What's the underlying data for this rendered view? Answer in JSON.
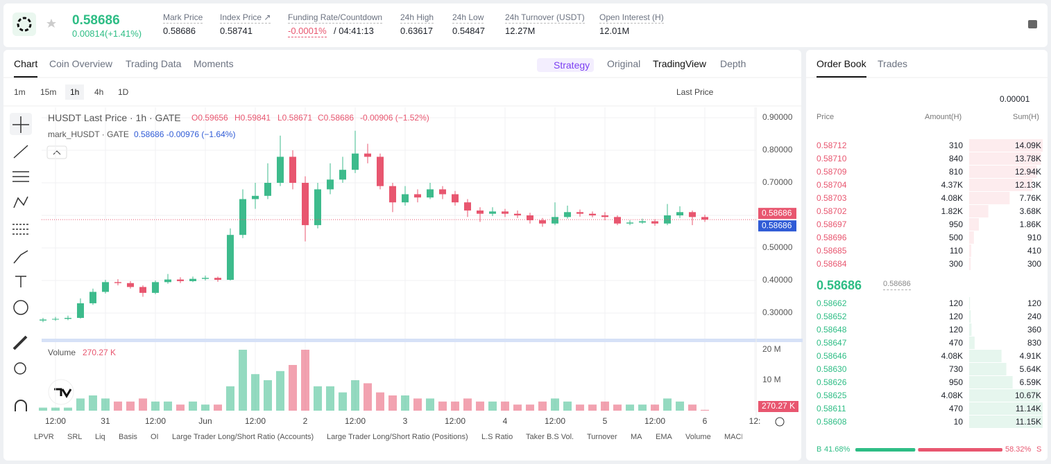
{
  "header": {
    "price": "0.58686",
    "change": "0.00814(+1.41%)",
    "stats": [
      {
        "label": "Mark Price",
        "value": "0.58686"
      },
      {
        "label": "Index Price ↗",
        "value": "0.58741"
      },
      {
        "label": "Funding Rate/Countdown",
        "value": "-0.0001%",
        "value2": "/ 04:41:13"
      },
      {
        "label": "24h High",
        "value": "0.63617"
      },
      {
        "label": "24h Low",
        "value": "0.54847"
      },
      {
        "label": "24h Turnover (USDT)",
        "value": "12.27M"
      },
      {
        "label": "Open Interest (H)",
        "value": "12.01M"
      }
    ]
  },
  "tabs": [
    "Chart",
    "Coin Overview",
    "Trading Data",
    "Moments"
  ],
  "view_tabs": [
    "Strategy",
    "Original",
    "TradingView",
    "Depth"
  ],
  "timeframes": [
    "1m",
    "15m",
    "1h",
    "4h",
    "1D"
  ],
  "price_source": "Last Price",
  "legend": {
    "title": "HUSDT Last Price · 1h · GATE",
    "o": "O0.59656",
    "h": "H0.59841",
    "l": "L0.58671",
    "c": "C0.58686",
    "chg": "-0.00906 (−1.52%)",
    "mark": "mark_HUSDT · GATE",
    "mark_vals": "0.58686 -0.00976 (−1.64%)"
  },
  "indicators": [
    "LPVR",
    "SRL",
    "Liq",
    "Basis",
    "OI",
    "Large Trader Long/Short Ratio (Accounts)",
    "Large Trader Long/Short Ratio (Positions)",
    "L.S Ratio",
    "Taker B.S Vol.",
    "Turnover",
    "MA",
    "EMA",
    "Volume",
    "MACD"
  ],
  "chart_data": {
    "type": "candlestick",
    "up_color": "#3dbb8c",
    "down_color": "#e8566f",
    "candles": [
      [
        0.277,
        0.285,
        0.272,
        0.28
      ],
      [
        0.28,
        0.288,
        0.276,
        0.282
      ],
      [
        0.282,
        0.292,
        0.278,
        0.285
      ],
      [
        0.285,
        0.345,
        0.283,
        0.33
      ],
      [
        0.33,
        0.375,
        0.325,
        0.365
      ],
      [
        0.365,
        0.402,
        0.36,
        0.395
      ],
      [
        0.395,
        0.404,
        0.385,
        0.392
      ],
      [
        0.392,
        0.398,
        0.375,
        0.38
      ],
      [
        0.38,
        0.385,
        0.35,
        0.362
      ],
      [
        0.362,
        0.4,
        0.358,
        0.395
      ],
      [
        0.395,
        0.42,
        0.39,
        0.403
      ],
      [
        0.403,
        0.41,
        0.392,
        0.398
      ],
      [
        0.398,
        0.412,
        0.395,
        0.405
      ],
      [
        0.405,
        0.415,
        0.4,
        0.408
      ],
      [
        0.408,
        0.412,
        0.396,
        0.402
      ],
      [
        0.402,
        0.56,
        0.4,
        0.54
      ],
      [
        0.54,
        0.68,
        0.53,
        0.65
      ],
      [
        0.65,
        0.7,
        0.62,
        0.66
      ],
      [
        0.66,
        0.76,
        0.65,
        0.7
      ],
      [
        0.7,
        0.845,
        0.69,
        0.78
      ],
      [
        0.78,
        0.8,
        0.68,
        0.7
      ],
      [
        0.7,
        0.72,
        0.52,
        0.57
      ],
      [
        0.57,
        0.7,
        0.56,
        0.68
      ],
      [
        0.68,
        0.76,
        0.665,
        0.71
      ],
      [
        0.71,
        0.78,
        0.7,
        0.74
      ],
      [
        0.74,
        0.86,
        0.73,
        0.79
      ],
      [
        0.79,
        0.82,
        0.76,
        0.78
      ],
      [
        0.78,
        0.79,
        0.68,
        0.69
      ],
      [
        0.69,
        0.7,
        0.61,
        0.64
      ],
      [
        0.64,
        0.69,
        0.63,
        0.665
      ],
      [
        0.665,
        0.68,
        0.64,
        0.655
      ],
      [
        0.655,
        0.7,
        0.65,
        0.68
      ],
      [
        0.68,
        0.69,
        0.65,
        0.665
      ],
      [
        0.665,
        0.675,
        0.63,
        0.64
      ],
      [
        0.64,
        0.65,
        0.595,
        0.615
      ],
      [
        0.615,
        0.625,
        0.58,
        0.605
      ],
      [
        0.605,
        0.625,
        0.598,
        0.612
      ],
      [
        0.612,
        0.62,
        0.595,
        0.605
      ],
      [
        0.605,
        0.615,
        0.592,
        0.6
      ],
      [
        0.6,
        0.608,
        0.575,
        0.585
      ],
      [
        0.585,
        0.592,
        0.565,
        0.575
      ],
      [
        0.575,
        0.64,
        0.57,
        0.595
      ],
      [
        0.595,
        0.63,
        0.59,
        0.61
      ],
      [
        0.61,
        0.618,
        0.596,
        0.605
      ],
      [
        0.605,
        0.612,
        0.594,
        0.6
      ],
      [
        0.6,
        0.61,
        0.585,
        0.595
      ],
      [
        0.595,
        0.6,
        0.57,
        0.575
      ],
      [
        0.575,
        0.585,
        0.57,
        0.578
      ],
      [
        0.578,
        0.59,
        0.574,
        0.582
      ],
      [
        0.582,
        0.588,
        0.568,
        0.575
      ],
      [
        0.575,
        0.635,
        0.57,
        0.6
      ],
      [
        0.6,
        0.628,
        0.592,
        0.61
      ],
      [
        0.61,
        0.615,
        0.57,
        0.595
      ],
      [
        0.595,
        0.602,
        0.58,
        0.587
      ]
    ],
    "ylim": [
      0.2213,
      0.9319
    ],
    "yticks": [
      {
        "value": 0.9,
        "label": "0.90000"
      },
      {
        "value": 0.8,
        "label": "0.80000"
      },
      {
        "value": 0.7,
        "label": "0.70000"
      },
      {
        "value": 0.6,
        "label": "0.60000"
      },
      {
        "value": 0.5,
        "label": "0.50000"
      },
      {
        "value": 0.4,
        "label": "0.40000"
      },
      {
        "value": 0.3,
        "label": "0.30000"
      }
    ],
    "xlim": [
      -0.11,
      57.11
    ],
    "xticks": [
      {
        "value": 1,
        "label": "12:00"
      },
      {
        "value": 5,
        "label": "31"
      },
      {
        "value": 9,
        "label": "12:00"
      },
      {
        "value": 13,
        "label": "Jun"
      },
      {
        "value": 17,
        "label": "12:00"
      },
      {
        "value": 21,
        "label": "2"
      },
      {
        "value": 25,
        "label": "12:00"
      },
      {
        "value": 29,
        "label": "3"
      },
      {
        "value": 33,
        "label": "12:00"
      },
      {
        "value": 37,
        "label": "4"
      },
      {
        "value": 41,
        "label": "12:00"
      },
      {
        "value": 45,
        "label": "5"
      },
      {
        "value": 49,
        "label": "12:00"
      },
      {
        "value": 53,
        "label": "6"
      },
      {
        "value": 57,
        "label": "12:"
      }
    ],
    "price_tags": [
      {
        "value": 0.58686,
        "color": "#e8566f"
      },
      {
        "value": 0.58686,
        "color": "#2f5bd6"
      }
    ],
    "volume_title": "Volume",
    "volumes": [
      1,
      1,
      1,
      4,
      5,
      4,
      3,
      3,
      4,
      3,
      3,
      2,
      3,
      2,
      2,
      8,
      20,
      12,
      10,
      13,
      15,
      20,
      8,
      8,
      6,
      10,
      9,
      6,
      5,
      5,
      4,
      4,
      3,
      3,
      4,
      3,
      3,
      3,
      2,
      2,
      3,
      4,
      3,
      2,
      2,
      3,
      2,
      2,
      2,
      2,
      4,
      3,
      2,
      0.27027
    ],
    "volume_value_labels": [
      null,
      null,
      null,
      null,
      null,
      null,
      null,
      null,
      null,
      null,
      null,
      null,
      null,
      null,
      null,
      null,
      null,
      null,
      null,
      null,
      null,
      null,
      null,
      null,
      null,
      null,
      null,
      null,
      null,
      null,
      null,
      null,
      null,
      null,
      null,
      null,
      null,
      null,
      null,
      null,
      null,
      null,
      null,
      null,
      null,
      null,
      null,
      null,
      null,
      null,
      null,
      null,
      null,
      "270.27 K"
    ],
    "volume_ylim": [
      0,
      21.14
    ],
    "volume_yticks": [
      {
        "value": 20,
        "label": "20 M"
      },
      {
        "value": 10,
        "label": "10 M"
      }
    ]
  },
  "order_book": {
    "tabs": [
      "Order Book",
      "Trades"
    ],
    "precision": "0.00001",
    "columns": [
      "Price",
      "Amount(H)",
      "Sum(H)"
    ],
    "asks": {
      "prices": [
        "0.58712",
        "0.58710",
        "0.58709",
        "0.58704",
        "0.58703",
        "0.58702",
        "0.58697",
        "0.58696",
        "0.58685",
        "0.58684"
      ],
      "amounts": [
        "310",
        "840",
        "810",
        "4.37K",
        "4.08K",
        "1.82K",
        "950",
        "500",
        "110",
        "300"
      ],
      "sums": [
        14090,
        13780,
        12940,
        12130,
        7760,
        3680,
        1860,
        910,
        410,
        300
      ],
      "sum_labels": [
        "14.09K",
        "13.78K",
        "12.94K",
        "12.13K",
        "7.76K",
        "3.68K",
        "1.86K",
        "910",
        "410",
        "300"
      ]
    },
    "mid_price": "0.58686",
    "mid_mark": "0.58686",
    "bids": {
      "prices": [
        "0.58662",
        "0.58652",
        "0.58648",
        "0.58647",
        "0.58646",
        "0.58630",
        "0.58626",
        "0.58625",
        "0.58611",
        "0.58608"
      ],
      "amounts": [
        "120",
        "120",
        "120",
        "470",
        "4.08K",
        "730",
        "950",
        "4.08K",
        "470",
        "10"
      ],
      "sums": [
        120,
        240,
        360,
        830,
        4910,
        5640,
        6590,
        10670,
        11140,
        11150
      ],
      "sum_labels": [
        "120",
        "240",
        "360",
        "830",
        "4.91K",
        "5.64K",
        "6.59K",
        "10.67K",
        "11.14K",
        "11.15K"
      ]
    },
    "ratio": {
      "buy_label": "B",
      "sell_label": "S",
      "values": [
        41.68,
        58.32
      ],
      "value_labels": [
        "41.68%",
        "58.32%"
      ]
    }
  }
}
